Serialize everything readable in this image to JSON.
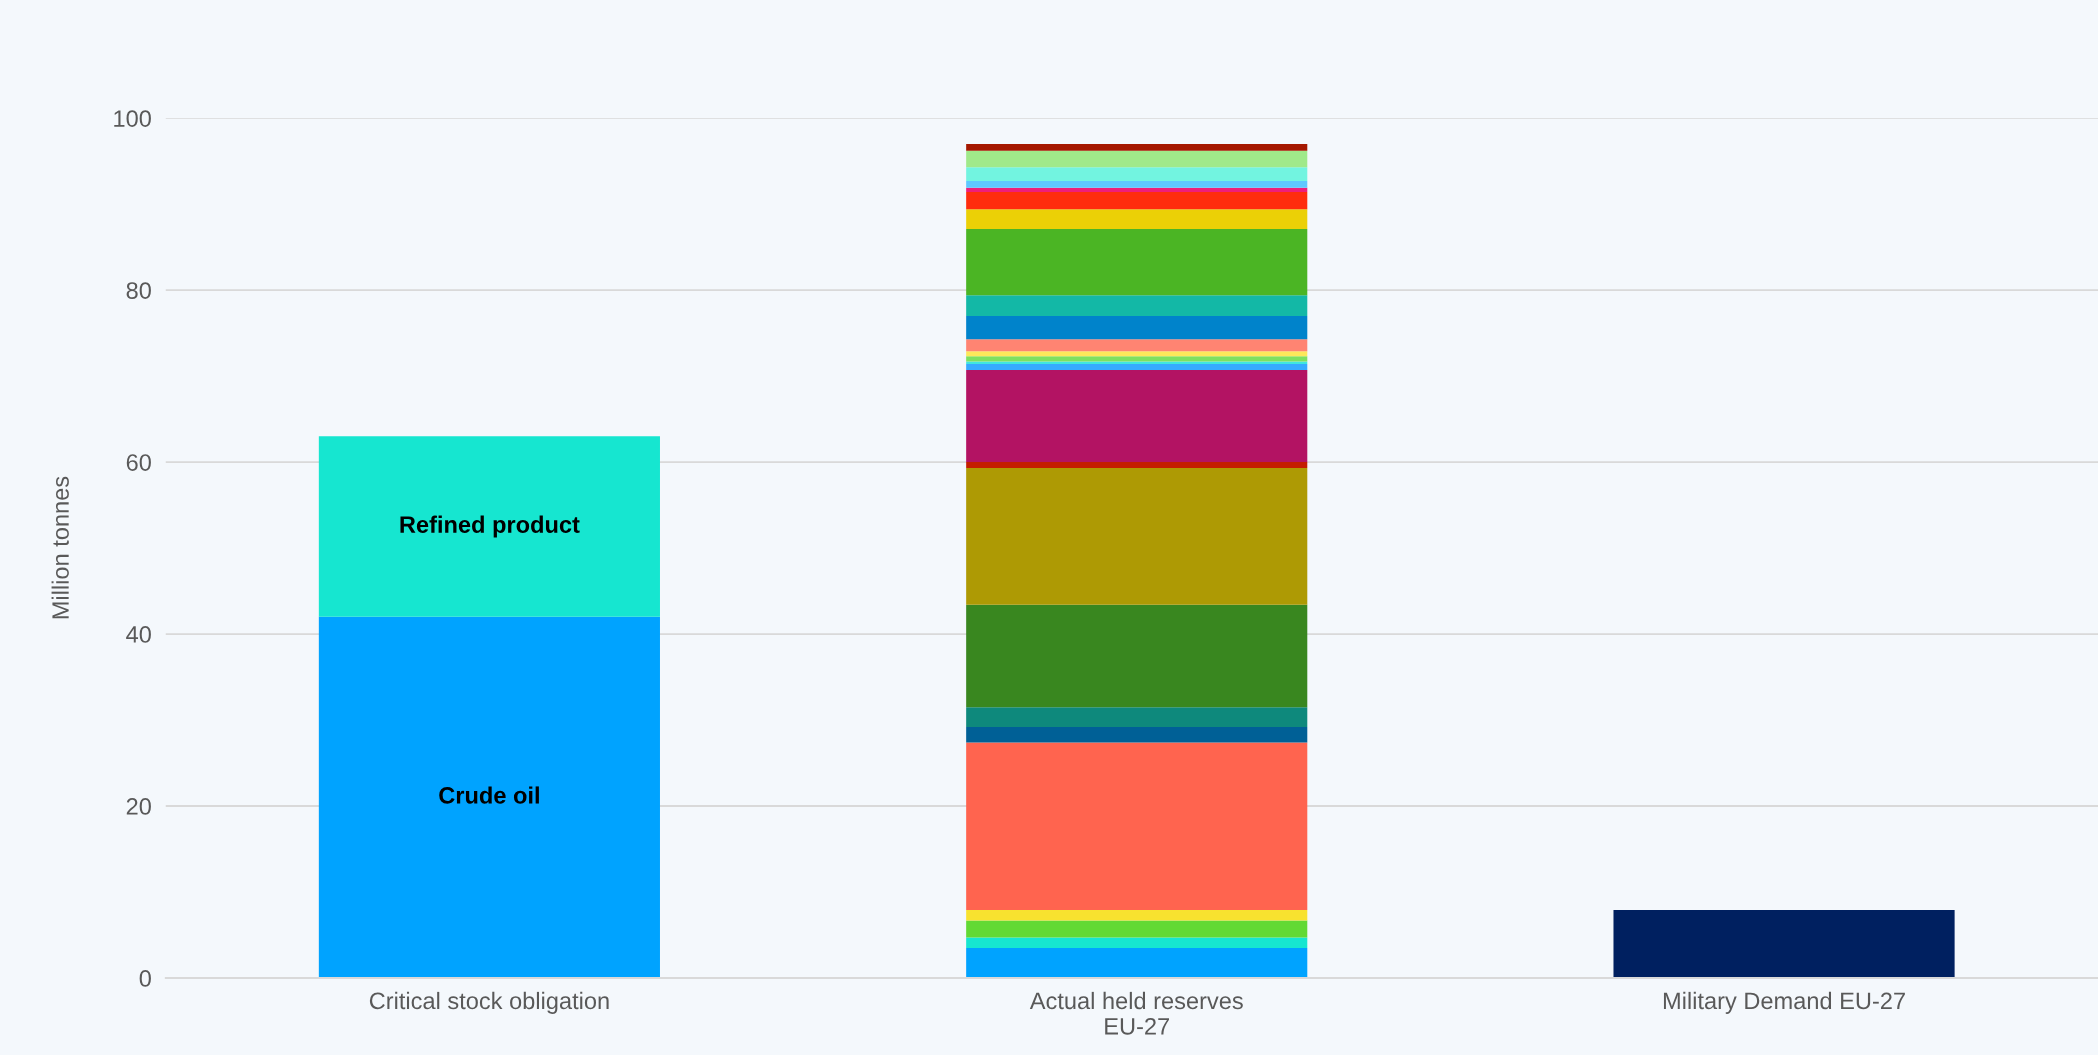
{
  "chart_data": {
    "type": "bar",
    "stacked": true,
    "ylabel": "Million tonnes",
    "categories": [
      "Critical stock obligation",
      "Actual held reserves\nEU-27",
      "Military Demand EU-27"
    ],
    "ylim": [
      0,
      100
    ],
    "yticks": [
      0,
      20,
      40,
      60,
      80,
      100
    ],
    "grid": "y",
    "legend": false,
    "series": [
      {
        "name": "Crude oil",
        "color": "#00a3ff",
        "values": [
          42,
          null,
          null
        ]
      },
      {
        "name": "Refined product",
        "color": "#16e6d0",
        "values": [
          21,
          null,
          null
        ]
      },
      {
        "color": "#00a3ff",
        "values": [
          null,
          3.5,
          null
        ]
      },
      {
        "color": "#16e6d0",
        "values": [
          null,
          1.2,
          null
        ]
      },
      {
        "color": "#62d934",
        "values": [
          null,
          2.0,
          null
        ]
      },
      {
        "color": "#f8e22f",
        "values": [
          null,
          1.2,
          null
        ]
      },
      {
        "color": "#ff644f",
        "values": [
          null,
          19.5,
          null
        ]
      },
      {
        "color": "#006096",
        "values": [
          null,
          1.8,
          null
        ]
      },
      {
        "color": "#0e897c",
        "values": [
          null,
          2.3,
          null
        ]
      },
      {
        "color": "#39871f",
        "values": [
          null,
          11.9,
          null
        ]
      },
      {
        "color": "#ae9a04",
        "values": [
          null,
          15.9,
          null
        ]
      },
      {
        "color": "#c41d00",
        "values": [
          null,
          0.7,
          null
        ]
      },
      {
        "color": "#b31363",
        "values": [
          null,
          10.7,
          null
        ]
      },
      {
        "color": "#36aaff",
        "values": [
          null,
          0.7,
          null
        ]
      },
      {
        "color": "#3ee6e0",
        "values": [
          null,
          0.3,
          null
        ]
      },
      {
        "color": "#7ee060",
        "values": [
          null,
          0.6,
          null
        ]
      },
      {
        "color": "#fde85a",
        "values": [
          null,
          0.6,
          null
        ]
      },
      {
        "color": "#ff8472",
        "values": [
          null,
          1.4,
          null
        ]
      },
      {
        "color": "#0083cb",
        "values": [
          null,
          2.7,
          null
        ]
      },
      {
        "color": "#13b8a6",
        "values": [
          null,
          2.4,
          null
        ]
      },
      {
        "color": "#4bb524",
        "values": [
          null,
          7.7,
          null
        ]
      },
      {
        "color": "#ebd006",
        "values": [
          null,
          2.3,
          null
        ]
      },
      {
        "color": "#ff2d0d",
        "values": [
          null,
          2.0,
          null
        ]
      },
      {
        "color": "#ee1e7a",
        "values": [
          null,
          0.5,
          null
        ]
      },
      {
        "color": "#5ec8ff",
        "values": [
          null,
          0.8,
          null
        ]
      },
      {
        "color": "#72f4e0",
        "values": [
          null,
          1.6,
          null
        ]
      },
      {
        "color": "#a0e98a",
        "values": [
          null,
          1.9,
          null
        ]
      },
      {
        "color": "#a51800",
        "values": [
          null,
          0.8,
          null
        ]
      },
      {
        "color": "#002060",
        "values": [
          null,
          null,
          7.9
        ]
      }
    ]
  }
}
